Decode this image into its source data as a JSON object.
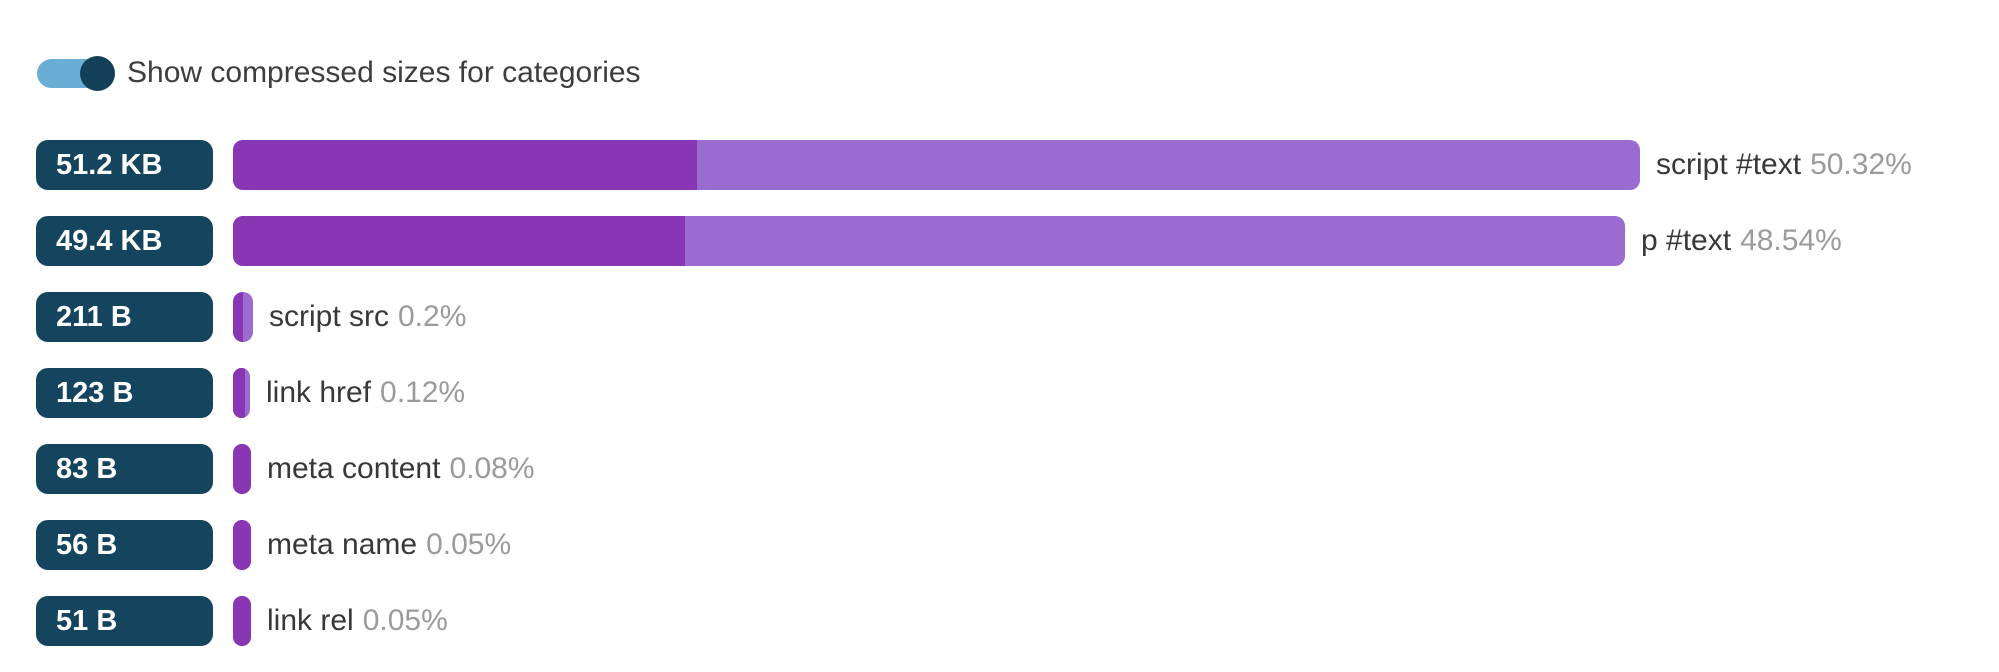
{
  "toggle": {
    "label": "Show compressed sizes for categories",
    "state": "on"
  },
  "colors": {
    "bar_dark": "#8936b5",
    "bar_light": "#9b6ccf",
    "badge_bg": "#15455e",
    "badge_text": "#ffffff",
    "toggle_track": "#6aadd5",
    "toggle_thumb": "#143f59",
    "label_text": "#383838",
    "pct_text": "#9b9b9b"
  },
  "chart_data": {
    "type": "bar",
    "orientation": "horizontal",
    "legend": "none",
    "grid": false,
    "rows": [
      {
        "category": "script #text",
        "size_label": "51.2 KB",
        "percent": 50.32,
        "percent_label": "50.32%",
        "bar_pct_of_max": 100,
        "dark_pct_of_bar": 33
      },
      {
        "category": "p #text",
        "size_label": "49.4 KB",
        "percent": 48.54,
        "percent_label": "48.54%",
        "bar_pct_of_max": 98.9,
        "dark_pct_of_bar": 32.5
      },
      {
        "category": "script src",
        "size_label": "211 B",
        "percent": 0.2,
        "percent_label": "0.2%",
        "bar_pct_of_max": 1.42,
        "dark_pct_of_bar": 50
      },
      {
        "category": "link href",
        "size_label": "123 B",
        "percent": 0.12,
        "percent_label": "0.12%",
        "bar_pct_of_max": 1.21,
        "dark_pct_of_bar": 70
      },
      {
        "category": "meta content",
        "size_label": "83 B",
        "percent": 0.08,
        "percent_label": "0.08%",
        "bar_pct_of_max": 1.28,
        "dark_pct_of_bar": 100
      },
      {
        "category": "meta name",
        "size_label": "56 B",
        "percent": 0.05,
        "percent_label": "0.05%",
        "bar_pct_of_max": 1.28,
        "dark_pct_of_bar": 100
      },
      {
        "category": "link rel",
        "size_label": "51 B",
        "percent": 0.05,
        "percent_label": "0.05%",
        "bar_pct_of_max": 1.28,
        "dark_pct_of_bar": 100
      }
    ]
  }
}
